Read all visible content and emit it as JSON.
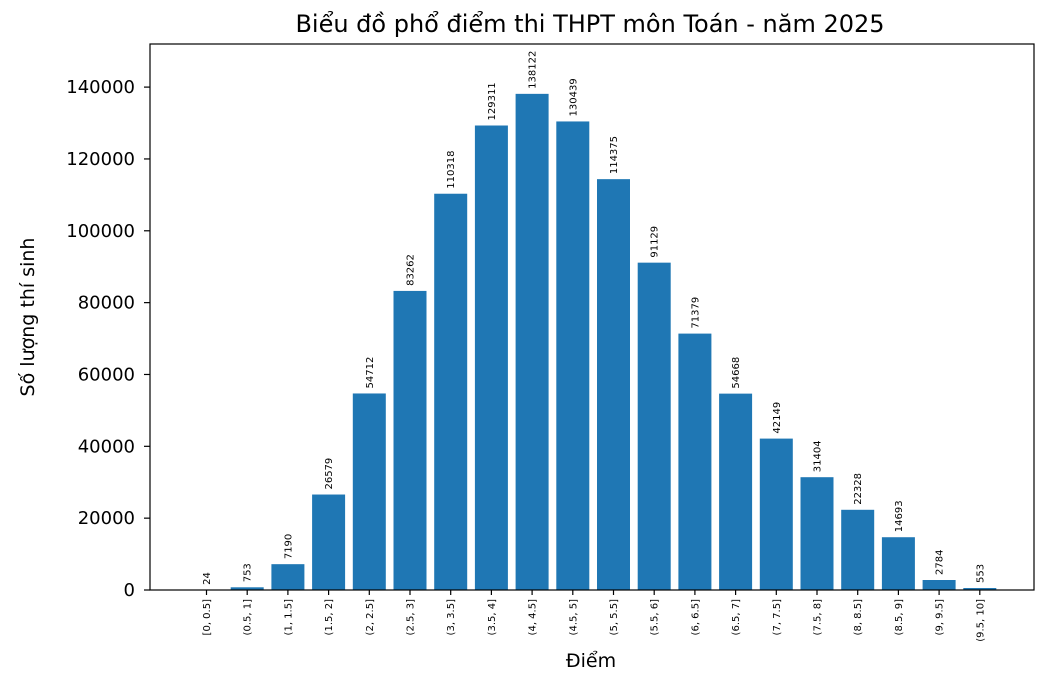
{
  "chart_data": {
    "type": "bar",
    "title": "Biểu đồ phổ điểm thi THPT môn Toán - năm 2025",
    "xlabel": "Điểm",
    "ylabel": "Số lượng thí sinh",
    "categories": [
      "[0, 0.5]",
      "(0.5, 1]",
      "(1, 1.5]",
      "(1.5, 2]",
      "(2, 2.5]",
      "(2.5, 3]",
      "(3, 3.5]",
      "(3.5, 4]",
      "(4, 4.5]",
      "(4.5, 5]",
      "(5, 5.5]",
      "(5.5, 6]",
      "(6, 6.5]",
      "(6.5, 7]",
      "(7, 7.5]",
      "(7.5, 8]",
      "(8, 8.5]",
      "(8.5, 9]",
      "(9, 9.5]",
      "(9.5, 10]"
    ],
    "values": [
      24,
      753,
      7190,
      26579,
      54712,
      83262,
      110318,
      129311,
      138122,
      130439,
      114375,
      91129,
      71379,
      54668,
      42149,
      31404,
      22328,
      14693,
      2784,
      553
    ],
    "yticks": [
      0,
      20000,
      40000,
      60000,
      80000,
      100000,
      120000,
      140000
    ],
    "ylim": [
      0,
      152000
    ],
    "color": "#1f77b4",
    "grid": false,
    "legend": "none"
  }
}
